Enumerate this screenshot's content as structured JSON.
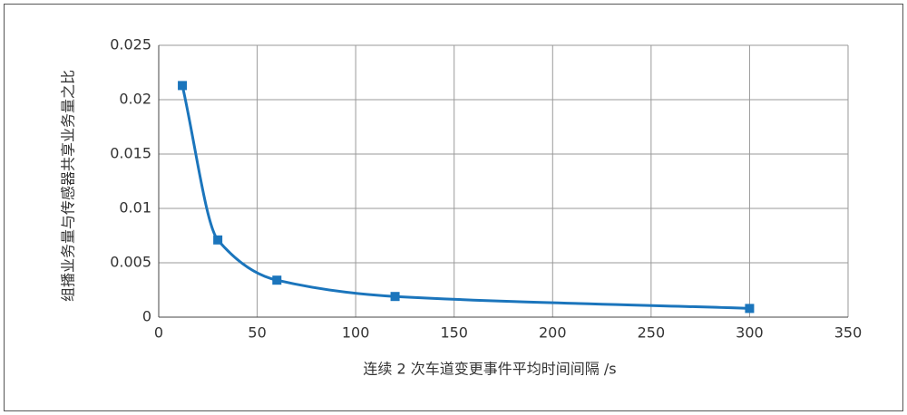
{
  "chart_data": {
    "type": "line",
    "x_label": "连续 2 次车道变更事件平均时间间隔 /s",
    "y_label": "组播业务量与传感器共享业务量之比",
    "x": [
      12,
      30,
      60,
      120,
      300
    ],
    "series": [
      {
        "color": "#1b75bc",
        "values": [
          0.0213,
          0.0071,
          0.0034,
          0.0019,
          0.0008
        ]
      }
    ],
    "xlim": [
      0,
      350
    ],
    "xticks": [
      0,
      50,
      100,
      150,
      200,
      250,
      300,
      350
    ],
    "ylim": [
      0,
      0.025
    ],
    "yticks": [
      0,
      0.005,
      0.01,
      0.015,
      0.02,
      0.025
    ],
    "grid": true
  }
}
